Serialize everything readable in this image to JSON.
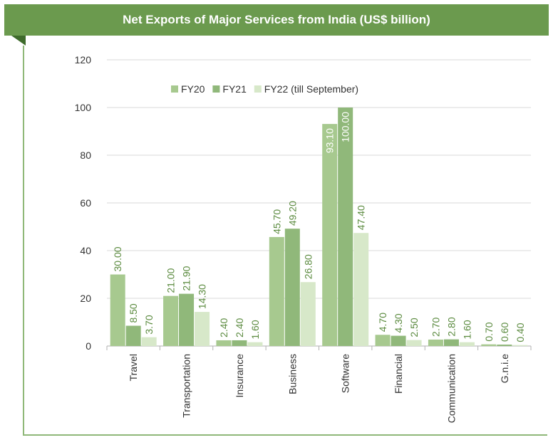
{
  "title": "Net Exports of Major Services from India (US$ billion)",
  "colors": {
    "banner": "#6b9a4e",
    "fold": "#3f6b2c",
    "frame": "#8fb878",
    "grid": "#d9d9d9",
    "axis_text": "#333333",
    "label_text": "#5a8a3e"
  },
  "chart_data": {
    "type": "bar",
    "title": "Net Exports of Major Services from India (US$ billion)",
    "categories": [
      "Travel",
      "Transportation",
      "Insurance",
      "Business",
      "Software",
      "Financial",
      "Communication",
      "G.n.i.e"
    ],
    "series": [
      {
        "name": "FY20",
        "color": "#a7c98f",
        "values": [
          30.0,
          21.0,
          2.4,
          45.7,
          93.1,
          4.7,
          2.7,
          0.7
        ],
        "labels": [
          "30.00",
          "21.00",
          "2.40",
          "45.70",
          "93.10",
          "4.70",
          "2.70",
          "0.70"
        ]
      },
      {
        "name": "FY21",
        "color": "#90b87a",
        "values": [
          8.5,
          21.9,
          2.4,
          49.2,
          100.0,
          4.3,
          2.8,
          0.6
        ],
        "labels": [
          "8.50",
          "21.90",
          "2.40",
          "49.20",
          "100.00",
          "4.30",
          "2.80",
          "0.60"
        ]
      },
      {
        "name": "FY22 (till September)",
        "color": "#d7e8c9",
        "values": [
          3.7,
          14.3,
          1.6,
          26.8,
          47.4,
          2.5,
          1.6,
          0.4
        ],
        "labels": [
          "3.70",
          "14.30",
          "1.60",
          "26.80",
          "47.40",
          "2.50",
          "1.60",
          "0.40"
        ]
      }
    ],
    "ylim": [
      0,
      120
    ],
    "yticks": [
      "0",
      "20",
      "40",
      "60",
      "80",
      "100",
      "120"
    ],
    "grid": true,
    "legend": "top"
  }
}
